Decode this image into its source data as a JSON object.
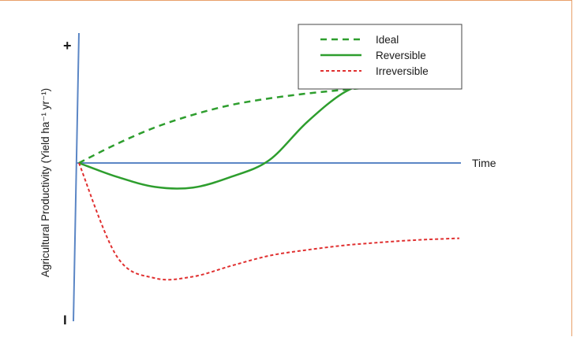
{
  "chart_data": {
    "type": "line",
    "ylabel": "Agricultural Productivity (Yield ha⁻¹ yr⁻¹)",
    "xlabel": "Time",
    "y_top_marker": "+",
    "y_bottom_marker": "I",
    "x": [
      0,
      1,
      2,
      3,
      4,
      5,
      6,
      7,
      8,
      9,
      10
    ],
    "ylim": [
      -5,
      2
    ],
    "series": [
      {
        "name": "Ideal",
        "color": "#2e9e2e",
        "style": "dashed",
        "values": [
          0,
          0.35,
          0.65,
          0.88,
          1.06,
          1.18,
          1.27,
          1.34,
          1.4,
          1.44,
          1.47
        ]
      },
      {
        "name": "Reversible",
        "color": "#2e9e2e",
        "style": "solid",
        "values": [
          0,
          -0.45,
          -0.78,
          -0.8,
          -0.45,
          0.05,
          0.75,
          1.3,
          1.55,
          1.62,
          1.63
        ]
      },
      {
        "name": "Irreversible",
        "color": "#e03030",
        "style": "dotted",
        "values": [
          0,
          -3.05,
          -3.75,
          -3.7,
          -3.35,
          -3.02,
          -2.83,
          -2.68,
          -2.58,
          -2.5,
          -2.45
        ]
      }
    ]
  }
}
